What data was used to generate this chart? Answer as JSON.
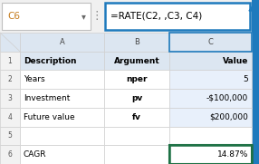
{
  "formula_bar_cell": "C6",
  "formula_bar_formula": "=RATE(C2, ,C3, C4)",
  "col_headers": [
    "A",
    "B",
    "C"
  ],
  "rows": [
    {
      "row": 1,
      "a": "Description",
      "b": "Argument",
      "c": "Value",
      "bold_a": true,
      "bold_b": true,
      "bold_c": true
    },
    {
      "row": 2,
      "a": "Years",
      "b": "nper",
      "c": "5",
      "bold_b": true
    },
    {
      "row": 3,
      "a": "Investment",
      "b": "pv",
      "c": "-$100,000",
      "bold_b": true
    },
    {
      "row": 4,
      "a": "Future value",
      "b": "fv",
      "c": "$200,000",
      "bold_b": true
    },
    {
      "row": 5,
      "a": "",
      "b": "",
      "c": ""
    },
    {
      "row": 6,
      "a": "CAGR",
      "b": "",
      "c": "14.87%"
    }
  ],
  "header_bg": "#dce6f1",
  "col_c_selected_bg": "#dce6f1",
  "col_c_data_bg": "#e8f0fb",
  "result_fill": "#ffffff",
  "result_border": "#1e7145",
  "formula_box_border": "#1e7abd",
  "formula_box_bg": "#ffffff",
  "cell_name_bg": "#ffffff",
  "cell_name_border": "#c0c0c0",
  "grid_color": "#d0d0d0",
  "text_color": "#000000",
  "arrow_color": "#1e7abd",
  "row_header_bg": "#f2f2f2",
  "figure_bg": "#f0f0f0",
  "fig_width": 2.86,
  "fig_height": 1.81,
  "dpi": 100
}
